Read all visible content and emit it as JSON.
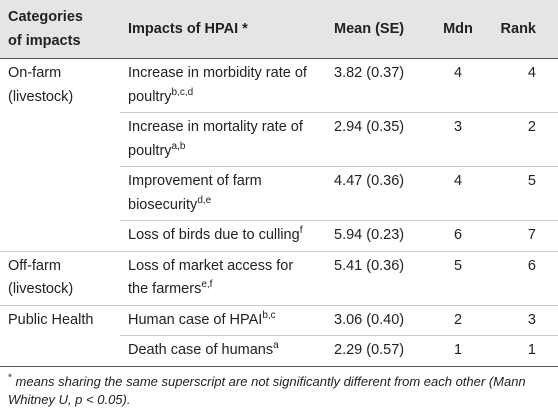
{
  "table": {
    "header": [
      "Categories of impacts",
      "Impacts of HPAI *",
      "Mean (SE)",
      "Mdn",
      "Rank"
    ],
    "header_lines": [
      [
        "Categories",
        "of impacts"
      ]
    ],
    "rows": [
      {
        "category": [
          "On-farm",
          "(livestock)"
        ],
        "impact": [
          "Increase in morbidity rate of",
          "poultry"
        ],
        "sup": "b,c,d",
        "mean": "3.82 (0.37)",
        "mdn": 4,
        "rank": 4
      },
      {
        "impact": [
          "Increase in mortality rate of",
          "poultry"
        ],
        "sup": "a,b",
        "mean": "2.94 (0.35)",
        "mdn": 3,
        "rank": 2
      },
      {
        "impact": [
          "Improvement of farm",
          "biosecurity"
        ],
        "sup": "d,e",
        "mean": "4.47 (0.36)",
        "mdn": 4,
        "rank": 5
      },
      {
        "impact": [
          "Loss of birds due to culling"
        ],
        "sup": "f",
        "mean": "5.94 (0.23)",
        "mdn": 6,
        "rank": 7
      },
      {
        "category": [
          "Off-farm",
          "(livestock)"
        ],
        "impact": [
          "Loss of market access for",
          "the farmers"
        ],
        "sup": "e,f",
        "mean": "5.41 (0.36)",
        "mdn": 5,
        "rank": 6
      },
      {
        "category": [
          "Public Health"
        ],
        "impact": [
          "Human case of HPAI"
        ],
        "sup": "b,c",
        "mean": "3.06 (0.40)",
        "mdn": 2,
        "rank": 3
      },
      {
        "impact": [
          "Death case of humans"
        ],
        "sup": "a",
        "mean": "2.29 (0.57)",
        "mdn": 1,
        "rank": 1
      }
    ]
  },
  "footnote": {
    "marker": "*",
    "text": "means sharing the same superscript are not significantly different from each other (Mann Whitney U, p < 0.05)."
  }
}
